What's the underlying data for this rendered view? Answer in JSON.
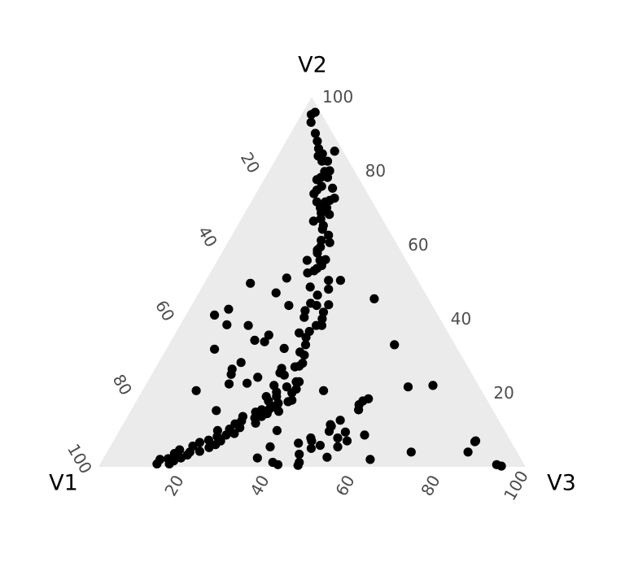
{
  "chart_data": {
    "type": "scatter",
    "subtype": "ternary",
    "vertex_labels": {
      "left": "V1",
      "top": "V2",
      "right": "V3"
    },
    "axis_ticks": [
      20,
      40,
      60,
      80,
      100
    ],
    "grid": false,
    "colors": {
      "panel": "#ebebeb",
      "point": "#000000",
      "tick_text": "#4d4d4d",
      "vertex_text": "#000000"
    },
    "points_columns": [
      "V1",
      "V2",
      "V3"
    ],
    "points": [
      [
        1.3,
        95.8,
        2.9
      ],
      [
        2.5,
        95.2,
        2.3
      ],
      [
        3.6,
        93.1,
        3.3
      ],
      [
        4.1,
        90.1,
        5.8
      ],
      [
        4.7,
        88.0,
        7.3
      ],
      [
        5.4,
        86.0,
        8.6
      ],
      [
        5.2,
        84.6,
        10.2
      ],
      [
        6.5,
        84.0,
        9.5
      ],
      [
        5.0,
        82.6,
        12.4
      ],
      [
        6.3,
        82.6,
        11.1
      ],
      [
        5.8,
        80.0,
        14.2
      ],
      [
        7.1,
        79.8,
        13.1
      ],
      [
        2.0,
        85.3,
        12.7
      ],
      [
        7.2,
        78.2,
        14.6
      ],
      [
        8.8,
        78.2,
        13.0
      ],
      [
        10.0,
        77.6,
        12.4
      ],
      [
        7.5,
        75.3,
        17.2
      ],
      [
        9.8,
        75.8,
        14.4
      ],
      [
        8.4,
        72.6,
        19.0
      ],
      [
        11.4,
        74.8,
        13.8
      ],
      [
        9.8,
        72.0,
        18.2
      ],
      [
        11.0,
        71.6,
        17.4
      ],
      [
        12.6,
        73.8,
        13.6
      ],
      [
        13.0,
        71.6,
        15.4
      ],
      [
        13.0,
        70.0,
        17.0
      ],
      [
        11.5,
        70.0,
        18.5
      ],
      [
        13.5,
        68.6,
        17.9
      ],
      [
        14.4,
        67.0,
        18.6
      ],
      [
        11.8,
        68.2,
        20.0
      ],
      [
        14.7,
        65.2,
        20.1
      ],
      [
        16.4,
        66.4,
        17.2
      ],
      [
        15.4,
        64.2,
        20.4
      ],
      [
        14.8,
        62.6,
        22.6
      ],
      [
        15.5,
        60.6,
        23.9
      ],
      [
        17.2,
        61.2,
        21.6
      ],
      [
        18.3,
        59.4,
        22.3
      ],
      [
        19.4,
        58.6,
        22.0
      ],
      [
        19.8,
        57.8,
        22.4
      ],
      [
        18.8,
        56.0,
        25.2
      ],
      [
        20.2,
        55.8,
        24.0
      ],
      [
        20.5,
        54.4,
        25.1
      ],
      [
        23.2,
        55.8,
        21.0
      ],
      [
        22.0,
        53.6,
        24.4
      ],
      [
        23.0,
        53.0,
        24.0
      ],
      [
        24.8,
        52.4,
        22.8
      ],
      [
        20.9,
        50.4,
        28.7
      ],
      [
        18.1,
        50.4,
        31.5
      ],
      [
        22.1,
        48.0,
        29.9
      ],
      [
        26.1,
        48.6,
        25.3
      ],
      [
        25.5,
        46.4,
        28.1
      ],
      [
        24.2,
        43.8,
        32.0
      ],
      [
        28.2,
        44.2,
        27.6
      ],
      [
        27.1,
        43.6,
        29.3
      ],
      [
        26.4,
        41.8,
        31.8
      ],
      [
        30.5,
        42.2,
        27.3
      ],
      [
        31.6,
        40.4,
        28.0
      ],
      [
        27.6,
        40.0,
        32.4
      ],
      [
        29.9,
        38.2,
        31.9
      ],
      [
        28.6,
        38.2,
        33.2
      ],
      [
        32.3,
        36.6,
        31.1
      ],
      [
        34.9,
        36.2,
        28.9
      ],
      [
        33.9,
        35.0,
        31.1
      ],
      [
        35.0,
        33.0,
        32.0
      ],
      [
        37.3,
        31.0,
        31.7
      ],
      [
        36.7,
        30.2,
        33.1
      ],
      [
        38.2,
        28.0,
        33.8
      ],
      [
        39.4,
        27.2,
        33.4
      ],
      [
        40.5,
        27.0,
        32.5
      ],
      [
        43.8,
        26.6,
        29.6
      ],
      [
        44.1,
        24.8,
        31.1
      ],
      [
        42.2,
        23.0,
        34.8
      ],
      [
        45.1,
        21.6,
        33.3
      ],
      [
        47.9,
        22.0,
        30.1
      ],
      [
        43.2,
        21.0,
        35.8
      ],
      [
        48.2,
        20.2,
        31.6
      ],
      [
        45.7,
        18.0,
        36.3
      ],
      [
        46.8,
        17.6,
        35.6
      ],
      [
        51.2,
        19.0,
        29.8
      ],
      [
        51.3,
        17.8,
        30.9
      ],
      [
        49.3,
        17.2,
        33.5
      ],
      [
        50.5,
        16.4,
        33.1
      ],
      [
        52.2,
        15.6,
        32.2
      ],
      [
        50.3,
        15.0,
        34.7
      ],
      [
        54.1,
        15.4,
        30.5
      ],
      [
        53.3,
        14.4,
        32.3
      ],
      [
        55.8,
        14.8,
        29.4
      ],
      [
        55.0,
        13.6,
        31.4
      ],
      [
        56.8,
        13.2,
        30.0
      ],
      [
        59.4,
        13.6,
        27.0
      ],
      [
        57.3,
        11.8,
        30.9
      ],
      [
        60.3,
        12.4,
        27.3
      ],
      [
        62.2,
        11.6,
        26.2
      ],
      [
        61.6,
        10.6,
        27.8
      ],
      [
        64.2,
        10.2,
        25.6
      ],
      [
        63.7,
        9.0,
        27.3
      ],
      [
        67.2,
        9.8,
        23.0
      ],
      [
        65.8,
        8.6,
        25.6
      ],
      [
        68.1,
        8.2,
        23.7
      ],
      [
        67.9,
        7.0,
        25.1
      ],
      [
        70.6,
        7.2,
        22.2
      ],
      [
        69.6,
        6.0,
        24.4
      ],
      [
        73.0,
        6.6,
        20.4
      ],
      [
        71.5,
        5.2,
        23.3
      ],
      [
        75.1,
        5.6,
        19.3
      ],
      [
        74.2,
        4.2,
        21.6
      ],
      [
        76.6,
        4.0,
        19.4
      ],
      [
        78.7,
        4.6,
        16.7
      ],
      [
        77.6,
        3.2,
        19.2
      ],
      [
        80.4,
        3.6,
        16.0
      ],
      [
        79.5,
        2.4,
        18.1
      ],
      [
        82.6,
        2.2,
        15.2
      ],
      [
        84.6,
        2.0,
        13.4
      ],
      [
        81.6,
        1.6,
        16.8
      ],
      [
        85.9,
        0.8,
        13.3
      ],
      [
        83.0,
        0.8,
        16.2
      ],
      [
        12.7,
        45.4,
        41.9
      ],
      [
        14.2,
        33.0,
        52.8
      ],
      [
        10.7,
        22.0,
        67.3
      ],
      [
        16.7,
        21.6,
        61.7
      ],
      [
        27.6,
        18.4,
        54.0
      ],
      [
        30.6,
        16.8,
        52.6
      ],
      [
        31.4,
        15.4,
        53.2
      ],
      [
        33.4,
        8.6,
        58.0
      ],
      [
        24.8,
        4.0,
        71.2
      ],
      [
        11.5,
        4.0,
        84.5
      ],
      [
        8.5,
        6.8,
        84.7
      ],
      [
        6.5,
        0.6,
        92.9
      ],
      [
        5.6,
        0.2,
        94.2
      ],
      [
        8.2,
        7.0,
        84.8
      ],
      [
        34.9,
        47.0,
        18.1
      ],
      [
        39.6,
        49.6,
        10.8
      ],
      [
        48.2,
        42.6,
        9.2
      ],
      [
        52.3,
        41.0,
        6.7
      ],
      [
        45.8,
        38.2,
        16.0
      ],
      [
        50.7,
        38.4,
        10.9
      ],
      [
        56.9,
        31.8,
        11.3
      ],
      [
        55.5,
        26.4,
        18.1
      ],
      [
        56.4,
        25.0,
        18.6
      ],
      [
        44.7,
        20.0,
        35.3
      ],
      [
        41.5,
        23.0,
        35.5
      ],
      [
        46.3,
        34.2,
        19.5
      ],
      [
        42.3,
        35.6,
        22.1
      ],
      [
        30.4,
        51.0,
        18.6
      ],
      [
        33.6,
        43.6,
        22.8
      ],
      [
        44.2,
        33.8,
        22.0
      ],
      [
        40.5,
        32.0,
        27.5
      ],
      [
        48.8,
        19.0,
        32.2
      ],
      [
        37.0,
        20.6,
        42.4
      ],
      [
        50.6,
        24.2,
        25.2
      ],
      [
        52.5,
        28.2,
        19.3
      ],
      [
        64.8,
        15.2,
        20.0
      ],
      [
        66.8,
        20.6,
        12.6
      ],
      [
        58.2,
        22.4,
        19.4
      ],
      [
        37.1,
        12.6,
        50.3
      ],
      [
        40.0,
        11.4,
        48.6
      ],
      [
        41.2,
        9.6,
        49.2
      ],
      [
        37.5,
        9.4,
        53.1
      ],
      [
        29.2,
        17.8,
        53.0
      ],
      [
        35.4,
        2.0,
        62.6
      ],
      [
        40.1,
        7.8,
        52.1
      ],
      [
        41.3,
        5.4,
        53.3
      ],
      [
        44.8,
        25.4,
        29.8
      ],
      [
        40.0,
        11.0,
        49.0
      ],
      [
        38.3,
        7.0,
        54.7
      ],
      [
        47.7,
        5.0,
        47.3
      ],
      [
        50.0,
        6.4,
        43.6
      ],
      [
        46.6,
        7.0,
        46.4
      ],
      [
        45.2,
        5.8,
        49.0
      ],
      [
        53.3,
        9.8,
        36.9
      ],
      [
        50.3,
        15.8,
        33.9
      ],
      [
        57.1,
        5.4,
        37.5
      ],
      [
        51.3,
        3.4,
        45.3
      ],
      [
        52.4,
        1.2,
        46.4
      ],
      [
        57.7,
        0.6,
        41.7
      ],
      [
        53.1,
        0.4,
        46.5
      ],
      [
        58.6,
        1.2,
        40.2
      ],
      [
        61.6,
        2.4,
        36.0
      ],
      [
        45.2,
        2.6,
        52.2
      ],
      [
        46.4,
        7.8,
        45.8
      ],
      [
        53.9,
        22.6,
        23.5
      ]
    ]
  }
}
